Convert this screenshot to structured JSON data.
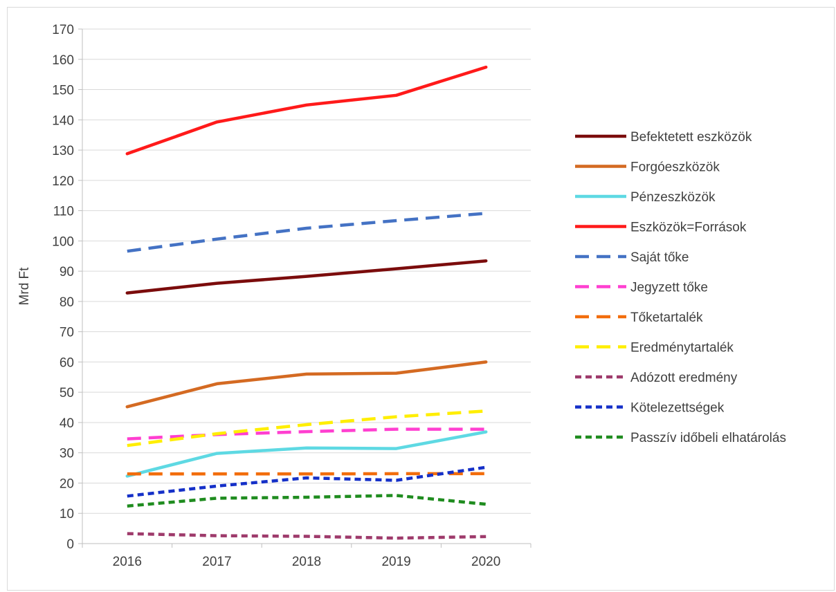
{
  "chart_data": {
    "type": "line",
    "title": "",
    "xlabel": "",
    "ylabel": "Mrd Ft",
    "ylim": [
      0,
      170
    ],
    "ystep": 10,
    "grid": true,
    "legend_position": "right",
    "categories": [
      "2016",
      "2017",
      "2018",
      "2019",
      "2020"
    ],
    "series": [
      {
        "name": "Befektetett eszközök",
        "color": "#7b0c0c",
        "dash": "solid",
        "values": [
          82.8,
          86.0,
          88.3,
          90.8,
          93.4
        ]
      },
      {
        "name": "Forgóeszközök",
        "color": "#d46a22",
        "dash": "solid",
        "values": [
          45.2,
          52.8,
          56.0,
          56.3,
          60.0
        ]
      },
      {
        "name": "Pénzeszközök",
        "color": "#5ed9e3",
        "dash": "solid",
        "values": [
          22.3,
          29.8,
          31.6,
          31.4,
          36.9
        ]
      },
      {
        "name": "Eszközök=Források",
        "color": "#ff1a1a",
        "dash": "solid",
        "values": [
          128.8,
          139.3,
          144.9,
          148.1,
          157.4
        ]
      },
      {
        "name": "Saját tőke",
        "color": "#4472c4",
        "dash": "long",
        "values": [
          96.6,
          100.6,
          104.2,
          106.7,
          109.1
        ]
      },
      {
        "name": "Jegyzett tőke",
        "color": "#ff3fd0",
        "dash": "long",
        "values": [
          34.6,
          36.0,
          37.0,
          37.8,
          37.8
        ]
      },
      {
        "name": "Tőketartalék",
        "color": "#f26d0c",
        "dash": "long",
        "values": [
          23.0,
          23.0,
          23.0,
          23.1,
          23.1
        ]
      },
      {
        "name": "Eredménytartalék",
        "color": "#ffee00",
        "dash": "long",
        "values": [
          32.4,
          36.3,
          39.3,
          41.9,
          43.8
        ]
      },
      {
        "name": "Adózott eredmény",
        "color": "#9e3a6b",
        "dash": "short",
        "values": [
          3.3,
          2.6,
          2.4,
          1.8,
          2.3
        ]
      },
      {
        "name": "Kötelezettségek",
        "color": "#1530c8",
        "dash": "short",
        "values": [
          15.7,
          19.0,
          21.7,
          20.9,
          25.2
        ]
      },
      {
        "name": "Passzív időbeli elhatárolás",
        "color": "#1f8c1f",
        "dash": "short",
        "values": [
          12.4,
          15.0,
          15.3,
          15.9,
          13.0
        ]
      }
    ]
  }
}
